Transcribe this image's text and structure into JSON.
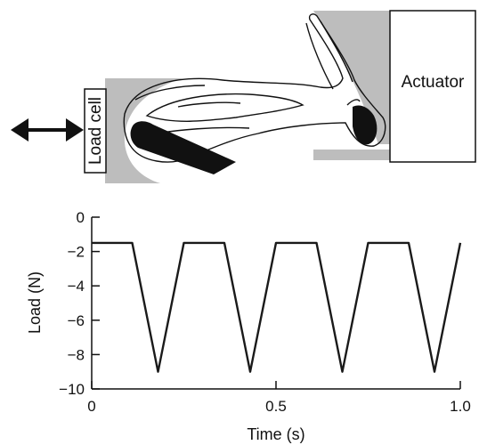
{
  "apparatus": {
    "load_cell_label": "Load cell",
    "actuator_label": "Actuator"
  },
  "colors": {
    "line": "#1a1a1a",
    "fixture_gray": "#bdbdbd",
    "outline": "#111111"
  },
  "chart_data": {
    "type": "line",
    "xlabel": "Time (s)",
    "ylabel": "Load (N)",
    "xlim": [
      0,
      1.0
    ],
    "ylim": [
      -10,
      0
    ],
    "x_ticks": [
      0,
      0.5,
      1.0
    ],
    "x_tick_labels": [
      "0",
      "0.5",
      "1.0"
    ],
    "y_ticks": [
      0,
      -2,
      -4,
      -6,
      -8,
      -10
    ],
    "y_tick_labels": [
      "0",
      "−2",
      "−4",
      "−6",
      "−8",
      "−10"
    ],
    "grid": false,
    "legend": "none",
    "series": [
      {
        "x": [
          0,
          0.11,
          0.18,
          0.25,
          0.36,
          0.43,
          0.5,
          0.61,
          0.68,
          0.75,
          0.86,
          0.93,
          1.0
        ],
        "y": [
          -1.5,
          -1.5,
          -9.0,
          -1.5,
          -1.5,
          -9.0,
          -1.5,
          -1.5,
          -9.0,
          -1.5,
          -1.5,
          -9.0,
          -1.5
        ]
      }
    ]
  }
}
